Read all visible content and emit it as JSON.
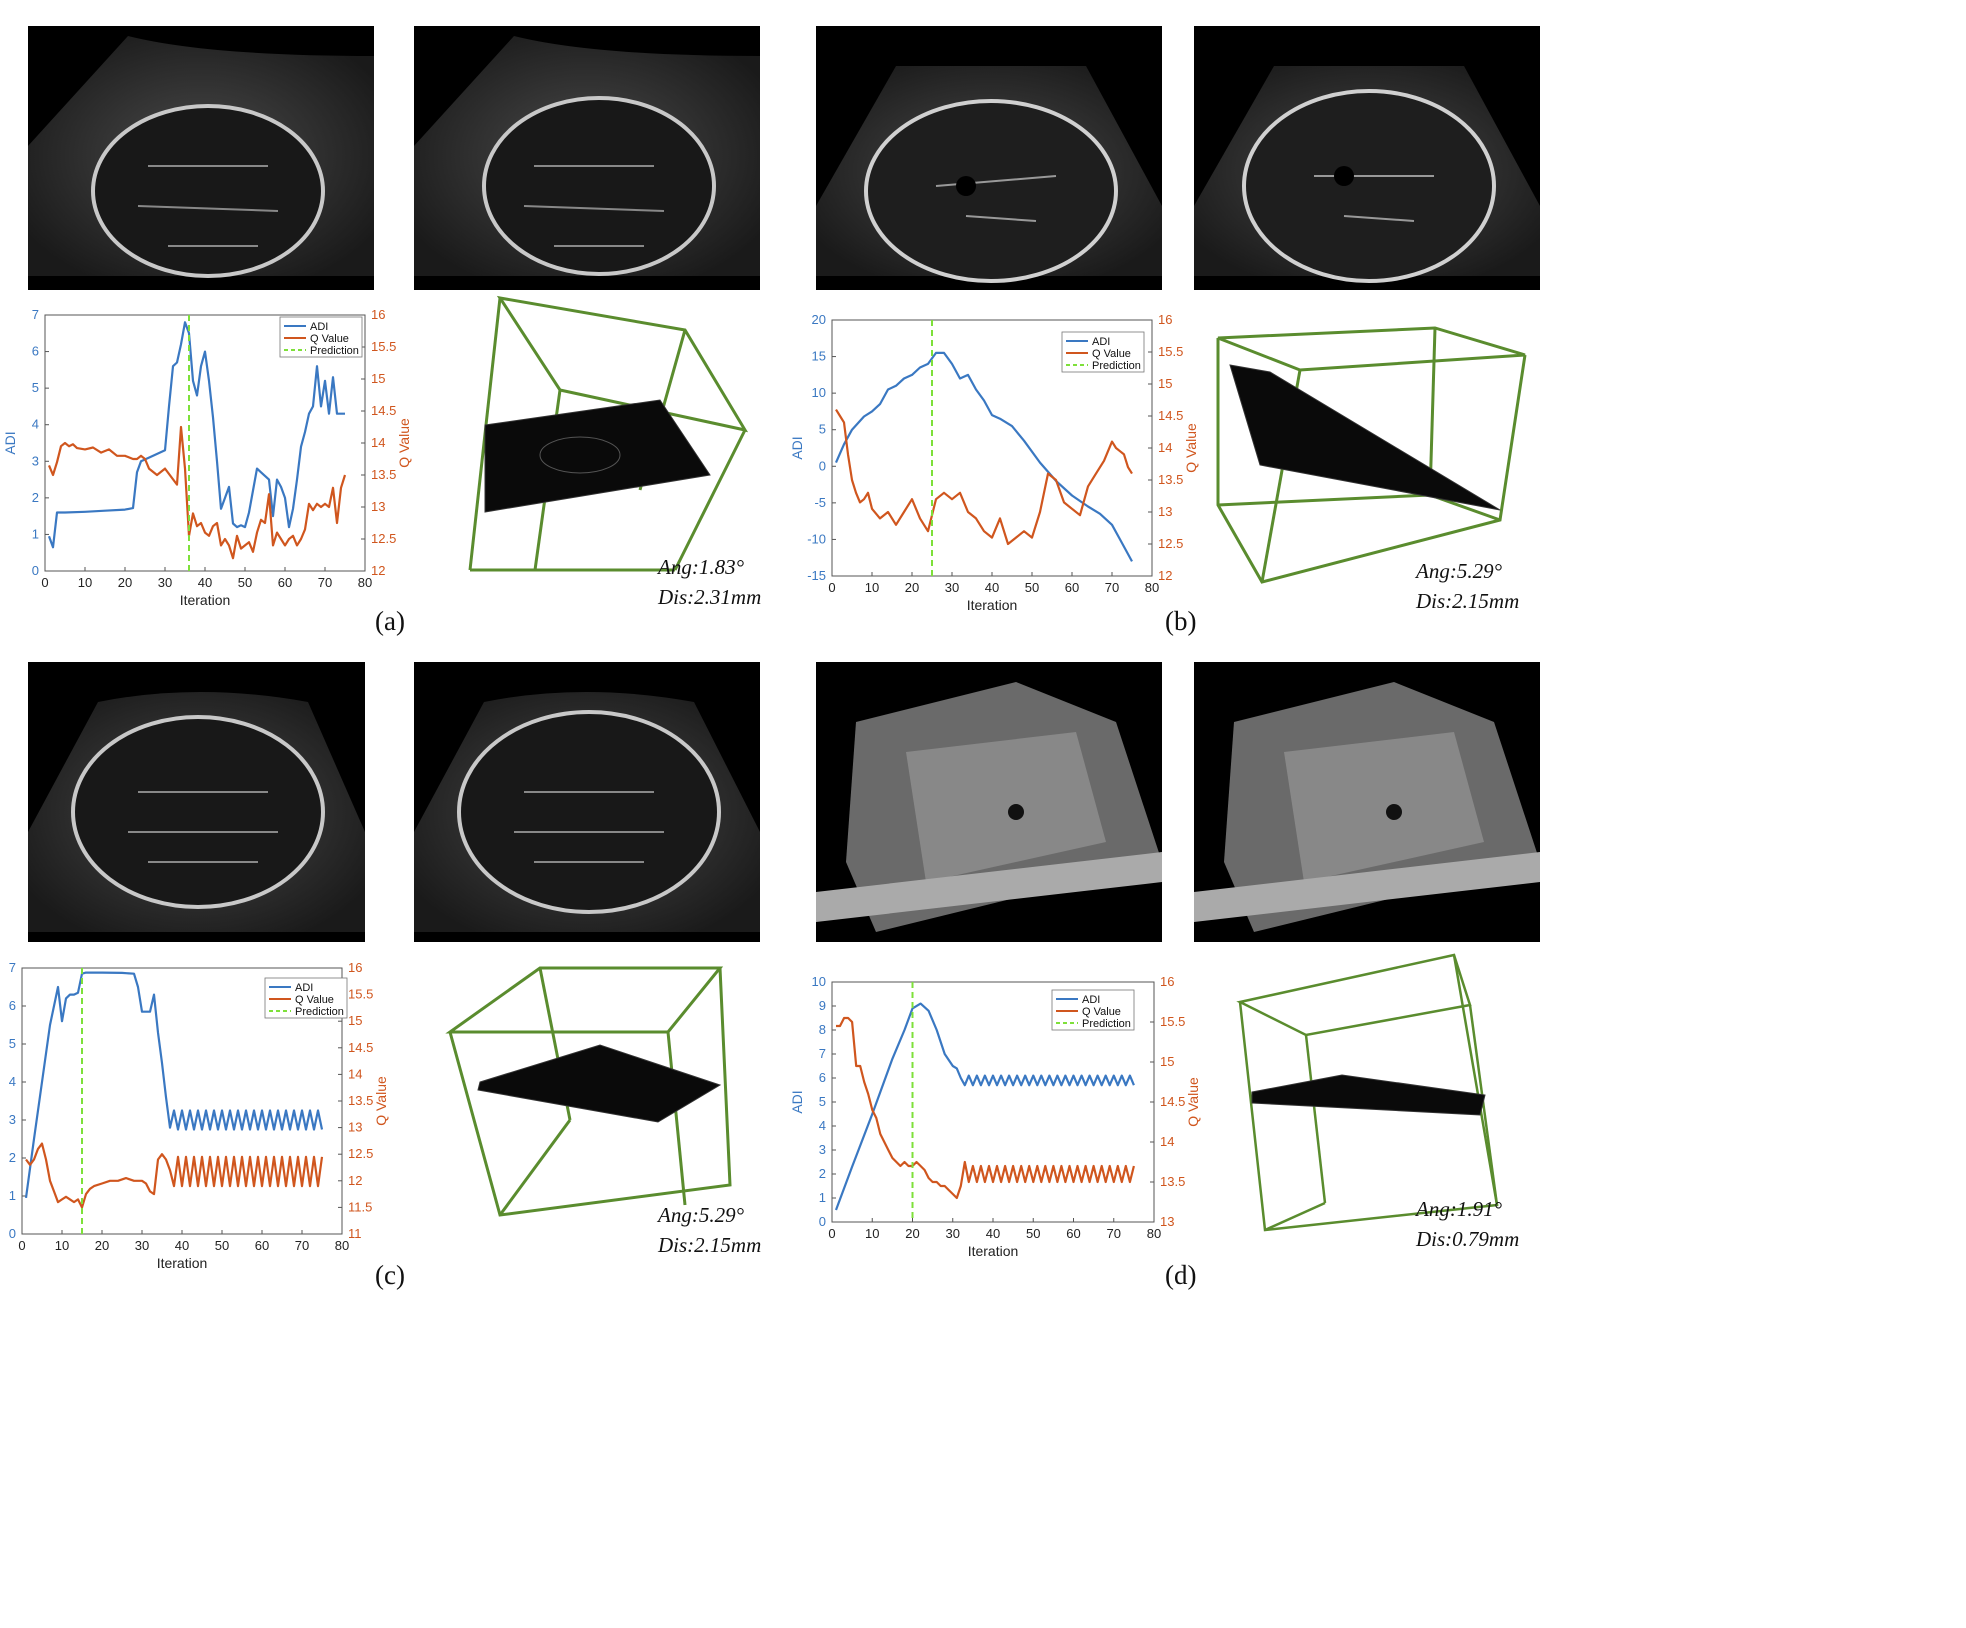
{
  "panels": [
    {
      "label": "(a)",
      "measurement": {
        "ang": "Ang:1.83°",
        "dis": "Dis:2.31mm"
      },
      "chart_data": {
        "type": "line",
        "xlabel": "Iteration",
        "ylabel": "ADI",
        "y2label": "Q Value",
        "xlim": [
          0,
          80
        ],
        "xticks": [
          0,
          10,
          20,
          30,
          40,
          50,
          60,
          70,
          80
        ],
        "ylim": [
          0,
          7
        ],
        "yticks": [
          0,
          1,
          2,
          3,
          4,
          5,
          6,
          7
        ],
        "y2lim": [
          12,
          16
        ],
        "y2ticks": [
          "12",
          "12.5",
          "13",
          "13.5",
          "14",
          "14.5",
          "15",
          "15.5",
          "16"
        ],
        "legend": [
          "ADI",
          "Q Value",
          "Prediction"
        ],
        "prediction_x": 36,
        "series": [
          {
            "name": "ADI",
            "axis": "left",
            "color": "#3a78c2",
            "x": [
              1,
              2,
              3,
              5,
              10,
              15,
              20,
              22,
              23,
              24,
              26,
              30,
              31,
              32,
              33,
              34,
              35,
              36,
              37,
              38,
              39,
              40,
              41,
              42,
              43,
              44,
              45,
              46,
              47,
              48,
              49,
              50,
              51,
              52,
              53,
              54,
              55,
              56,
              57,
              58,
              59,
              60,
              61,
              62,
              63,
              64,
              65,
              66,
              67,
              68,
              69,
              70,
              71,
              72,
              73,
              74,
              75
            ],
            "y": [
              0.95,
              0.65,
              1.6,
              1.6,
              1.62,
              1.65,
              1.68,
              1.72,
              2.7,
              3.0,
              3.1,
              3.3,
              4.5,
              5.6,
              5.7,
              6.2,
              6.8,
              6.5,
              5.2,
              4.8,
              5.6,
              6.0,
              5.2,
              4.2,
              3.0,
              1.7,
              2.0,
              2.3,
              1.3,
              1.2,
              1.25,
              1.2,
              1.6,
              2.2,
              2.8,
              2.7,
              2.6,
              2.5,
              1.5,
              2.5,
              2.3,
              2.0,
              1.2,
              1.7,
              2.5,
              3.4,
              3.8,
              4.3,
              4.5,
              5.6,
              4.5,
              5.2,
              4.3,
              5.3,
              4.3,
              4.3,
              4.3
            ]
          },
          {
            "name": "Q Value",
            "axis": "right",
            "color": "#d0561e",
            "x": [
              1,
              2,
              3,
              4,
              5,
              6,
              7,
              8,
              10,
              12,
              14,
              16,
              18,
              20,
              22,
              23,
              24,
              25,
              26,
              28,
              30,
              33,
              34,
              35,
              36,
              37,
              38,
              39,
              40,
              41,
              42,
              43,
              44,
              45,
              46,
              47,
              48,
              49,
              50,
              51,
              52,
              53,
              54,
              55,
              56,
              57,
              58,
              59,
              60,
              61,
              62,
              63,
              64,
              65,
              66,
              67,
              68,
              69,
              70,
              71,
              72,
              73,
              74,
              75
            ],
            "y": [
              13.65,
              13.5,
              13.7,
              13.95,
              14.0,
              13.95,
              13.98,
              13.92,
              13.9,
              13.93,
              13.85,
              13.9,
              13.8,
              13.8,
              13.75,
              13.75,
              13.8,
              13.75,
              13.6,
              13.5,
              13.6,
              13.35,
              14.25,
              13.6,
              12.55,
              12.9,
              12.7,
              12.75,
              12.6,
              12.55,
              12.7,
              12.75,
              12.4,
              12.5,
              12.4,
              12.2,
              12.55,
              12.35,
              12.4,
              12.45,
              12.3,
              12.6,
              12.8,
              12.75,
              13.2,
              12.4,
              12.6,
              12.5,
              12.4,
              12.5,
              12.55,
              12.4,
              12.5,
              12.65,
              13.05,
              12.95,
              13.05,
              13.0,
              13.05,
              13.0,
              13.3,
              12.75,
              13.3,
              13.5
            ]
          }
        ]
      }
    },
    {
      "label": "(b)",
      "measurement": {
        "ang": "Ang:5.29°",
        "dis": "Dis:2.15mm"
      },
      "chart_data": {
        "type": "line",
        "xlabel": "Iteration",
        "ylabel": "ADI",
        "y2label": "Q Value",
        "xlim": [
          0,
          80
        ],
        "xticks": [
          0,
          10,
          20,
          30,
          40,
          50,
          60,
          70,
          80
        ],
        "ylim": [
          -15,
          20
        ],
        "yticks": [
          -15,
          -10,
          -5,
          0,
          5,
          10,
          15,
          20
        ],
        "y2lim": [
          12,
          16
        ],
        "y2ticks": [
          "12",
          "12.5",
          "13",
          "13.5",
          "14",
          "14.5",
          "15",
          "15.5",
          "16"
        ],
        "legend": [
          "ADI",
          "Q Value",
          "Prediction"
        ],
        "prediction_x": 25,
        "series": [
          {
            "name": "ADI",
            "axis": "left",
            "color": "#3a78c2",
            "x": [
              1,
              3,
              5,
              8,
              10,
              12,
              14,
              16,
              18,
              20,
              22,
              24,
              26,
              28,
              30,
              32,
              34,
              36,
              38,
              40,
              42,
              45,
              48,
              52,
              56,
              60,
              64,
              67,
              70,
              72,
              75
            ],
            "y": [
              0.5,
              3.0,
              5.0,
              6.8,
              7.5,
              8.5,
              10.5,
              11.0,
              12.0,
              12.5,
              13.5,
              14.0,
              15.5,
              15.5,
              14.0,
              12.0,
              12.5,
              10.5,
              9.0,
              7.0,
              6.5,
              5.5,
              3.5,
              0.5,
              -2.0,
              -4.0,
              -5.5,
              -6.5,
              -8.0,
              -10.0,
              -13.0
            ]
          },
          {
            "name": "Q Value",
            "axis": "right",
            "color": "#d0561e",
            "x": [
              1,
              2,
              3,
              4,
              5,
              6,
              7,
              8,
              9,
              10,
              12,
              14,
              16,
              18,
              20,
              22,
              24,
              26,
              28,
              30,
              32,
              34,
              36,
              38,
              40,
              42,
              44,
              46,
              48,
              50,
              52,
              54,
              56,
              58,
              60,
              62,
              64,
              66,
              68,
              70,
              71,
              72,
              73,
              74,
              75
            ],
            "y": [
              14.6,
              14.5,
              14.4,
              13.9,
              13.5,
              13.3,
              13.15,
              13.2,
              13.3,
              13.05,
              12.9,
              13.0,
              12.8,
              13.0,
              13.2,
              12.9,
              12.7,
              13.2,
              13.3,
              13.2,
              13.3,
              13.0,
              12.9,
              12.7,
              12.6,
              12.9,
              12.5,
              12.6,
              12.7,
              12.6,
              13.0,
              13.6,
              13.5,
              13.15,
              13.05,
              12.95,
              13.4,
              13.6,
              13.8,
              14.1,
              14.0,
              13.95,
              13.9,
              13.7,
              13.6
            ]
          }
        ]
      }
    },
    {
      "label": "(c)",
      "measurement": {
        "ang": "Ang:5.29°",
        "dis": "Dis:2.15mm"
      },
      "chart_data": {
        "type": "line",
        "xlabel": "Iteration",
        "ylabel": "ADI",
        "y2label": "Q Value",
        "xlim": [
          0,
          80
        ],
        "xticks": [
          0,
          10,
          20,
          30,
          40,
          50,
          60,
          70,
          80
        ],
        "ylim": [
          0,
          7
        ],
        "yticks": [
          0,
          1,
          2,
          3,
          4,
          5,
          6,
          7
        ],
        "y2lim": [
          11,
          16
        ],
        "y2ticks": [
          "11",
          "11.5",
          "12",
          "12.5",
          "13",
          "13.5",
          "14",
          "14.5",
          "15",
          "15.5",
          "16"
        ],
        "legend": [
          "ADI",
          "Q Value",
          "Prediction"
        ],
        "prediction_x": 15,
        "series": [
          {
            "name": "ADI",
            "axis": "left",
            "color": "#3a78c2",
            "x": [
              1,
              3,
              5,
              7,
              9,
              10,
              11,
              12,
              13,
              14,
              15,
              16,
              17,
              20,
              25,
              28,
              29,
              30,
              31,
              32,
              33,
              34,
              35,
              36,
              37
            ],
            "y": [
              0.95,
              2.5,
              4.0,
              5.5,
              6.5,
              5.6,
              6.2,
              6.3,
              6.3,
              6.35,
              6.85,
              6.88,
              6.88,
              6.88,
              6.87,
              6.85,
              6.5,
              5.85,
              5.85,
              5.85,
              6.3,
              5.3,
              4.5,
              3.6,
              2.8
            ],
            "oscillation": {
              "from_x": 37,
              "to_x": 75,
              "low": 2.75,
              "high": 3.25
            }
          },
          {
            "name": "Q Value",
            "axis": "right",
            "color": "#d0561e",
            "x": [
              1,
              2,
              3,
              4,
              5,
              6,
              7,
              8,
              9,
              10,
              11,
              12,
              13,
              14,
              15,
              16,
              17,
              18,
              20,
              22,
              24,
              26,
              28,
              30,
              31,
              32,
              33,
              34,
              35,
              36,
              37
            ],
            "y": [
              12.4,
              12.3,
              12.4,
              12.6,
              12.7,
              12.4,
              12.0,
              11.8,
              11.6,
              11.65,
              11.7,
              11.65,
              11.6,
              11.65,
              11.5,
              11.75,
              11.85,
              11.9,
              11.95,
              12.0,
              12.0,
              12.05,
              12.0,
              12.0,
              11.95,
              11.8,
              11.75,
              12.4,
              12.5,
              12.4,
              12.2
            ],
            "oscillation": {
              "from_x": 37,
              "to_x": 75,
              "low": 11.9,
              "high": 12.45
            }
          }
        ]
      }
    },
    {
      "label": "(d)",
      "measurement": {
        "ang": "Ang:1.91°",
        "dis": "Dis:0.79mm"
      },
      "chart_data": {
        "type": "line",
        "xlabel": "Iteration",
        "ylabel": "ADI",
        "y2label": "Q Value",
        "xlim": [
          0,
          80
        ],
        "xticks": [
          0,
          10,
          20,
          30,
          40,
          50,
          60,
          70,
          80
        ],
        "ylim": [
          0,
          10
        ],
        "yticks": [
          0,
          1,
          2,
          3,
          4,
          5,
          6,
          7,
          8,
          9,
          10
        ],
        "y2lim": [
          13,
          16
        ],
        "y2ticks": [
          "13",
          "13.5",
          "14",
          "14.5",
          "15",
          "15.5",
          "16"
        ],
        "legend": [
          "ADI",
          "Q Value",
          "Prediction"
        ],
        "prediction_x": 20,
        "series": [
          {
            "name": "ADI",
            "axis": "left",
            "color": "#3a78c2",
            "x": [
              1,
              5,
              10,
              15,
              18,
              20,
              22,
              24,
              26,
              28,
              30,
              31,
              32,
              33
            ],
            "y": [
              0.5,
              2.3,
              4.5,
              6.8,
              8.0,
              8.9,
              9.1,
              8.8,
              8.0,
              7.0,
              6.5,
              6.4,
              6.0,
              5.7
            ],
            "oscillation": {
              "from_x": 33,
              "to_x": 75,
              "low": 5.7,
              "high": 6.1
            }
          },
          {
            "name": "Q Value",
            "axis": "right",
            "color": "#d0561e",
            "x": [
              1,
              2,
              3,
              4,
              5,
              6,
              7,
              8,
              9,
              10,
              11,
              12,
              13,
              14,
              15,
              16,
              17,
              18,
              19,
              20,
              21,
              22,
              23,
              24,
              25,
              26,
              27,
              28,
              29,
              30,
              31,
              32,
              33
            ],
            "y": [
              15.45,
              15.45,
              15.55,
              15.55,
              15.5,
              14.95,
              14.95,
              14.75,
              14.6,
              14.4,
              14.3,
              14.1,
              14.0,
              13.9,
              13.8,
              13.75,
              13.7,
              13.75,
              13.7,
              13.7,
              13.75,
              13.7,
              13.65,
              13.55,
              13.5,
              13.5,
              13.45,
              13.45,
              13.4,
              13.35,
              13.3,
              13.45,
              13.75
            ],
            "oscillation": {
              "from_x": 33,
              "to_x": 75,
              "low": 13.5,
              "high": 13.7
            }
          }
        ]
      }
    }
  ]
}
